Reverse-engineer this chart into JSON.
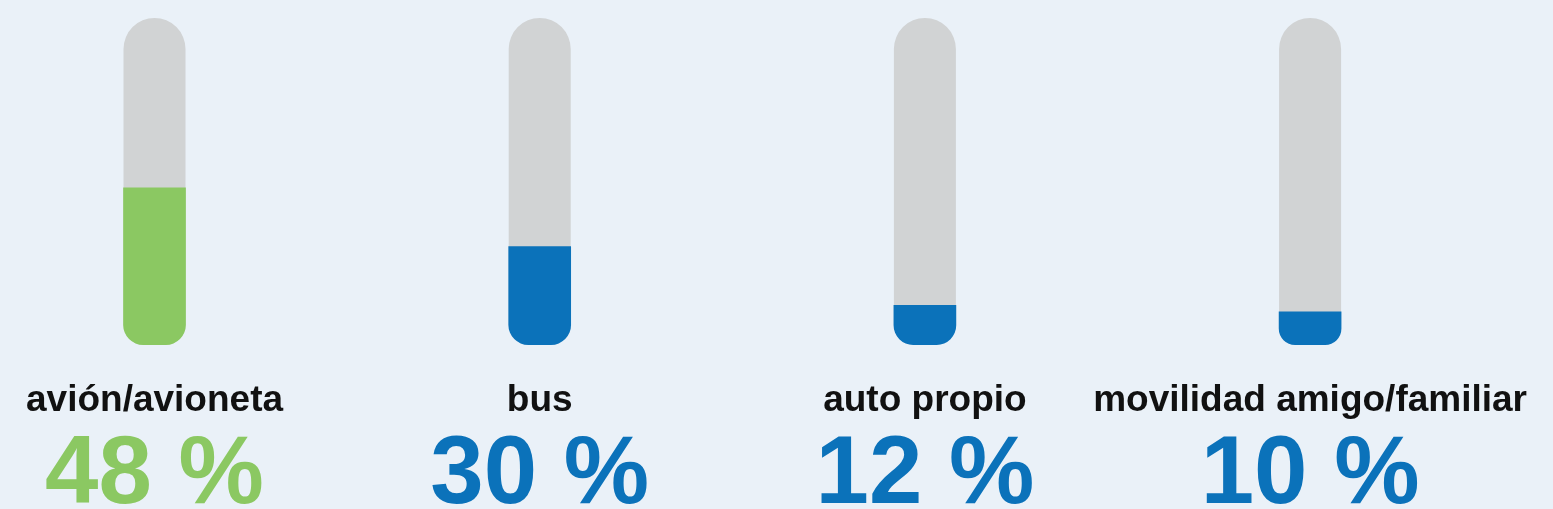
{
  "chart_data": {
    "type": "bar",
    "categories": [
      "avión/avioneta",
      "bus",
      "auto propio",
      "movilidad amigo/familiar"
    ],
    "values": [
      48,
      30,
      12,
      10
    ],
    "colors": [
      "#8bc862",
      "#0b72ba",
      "#0b72ba",
      "#0b72ba"
    ],
    "ylim": [
      0,
      100
    ],
    "value_labels": [
      "48 %",
      "30 %",
      "12 %",
      "10 %"
    ],
    "tick_labels": "x"
  }
}
